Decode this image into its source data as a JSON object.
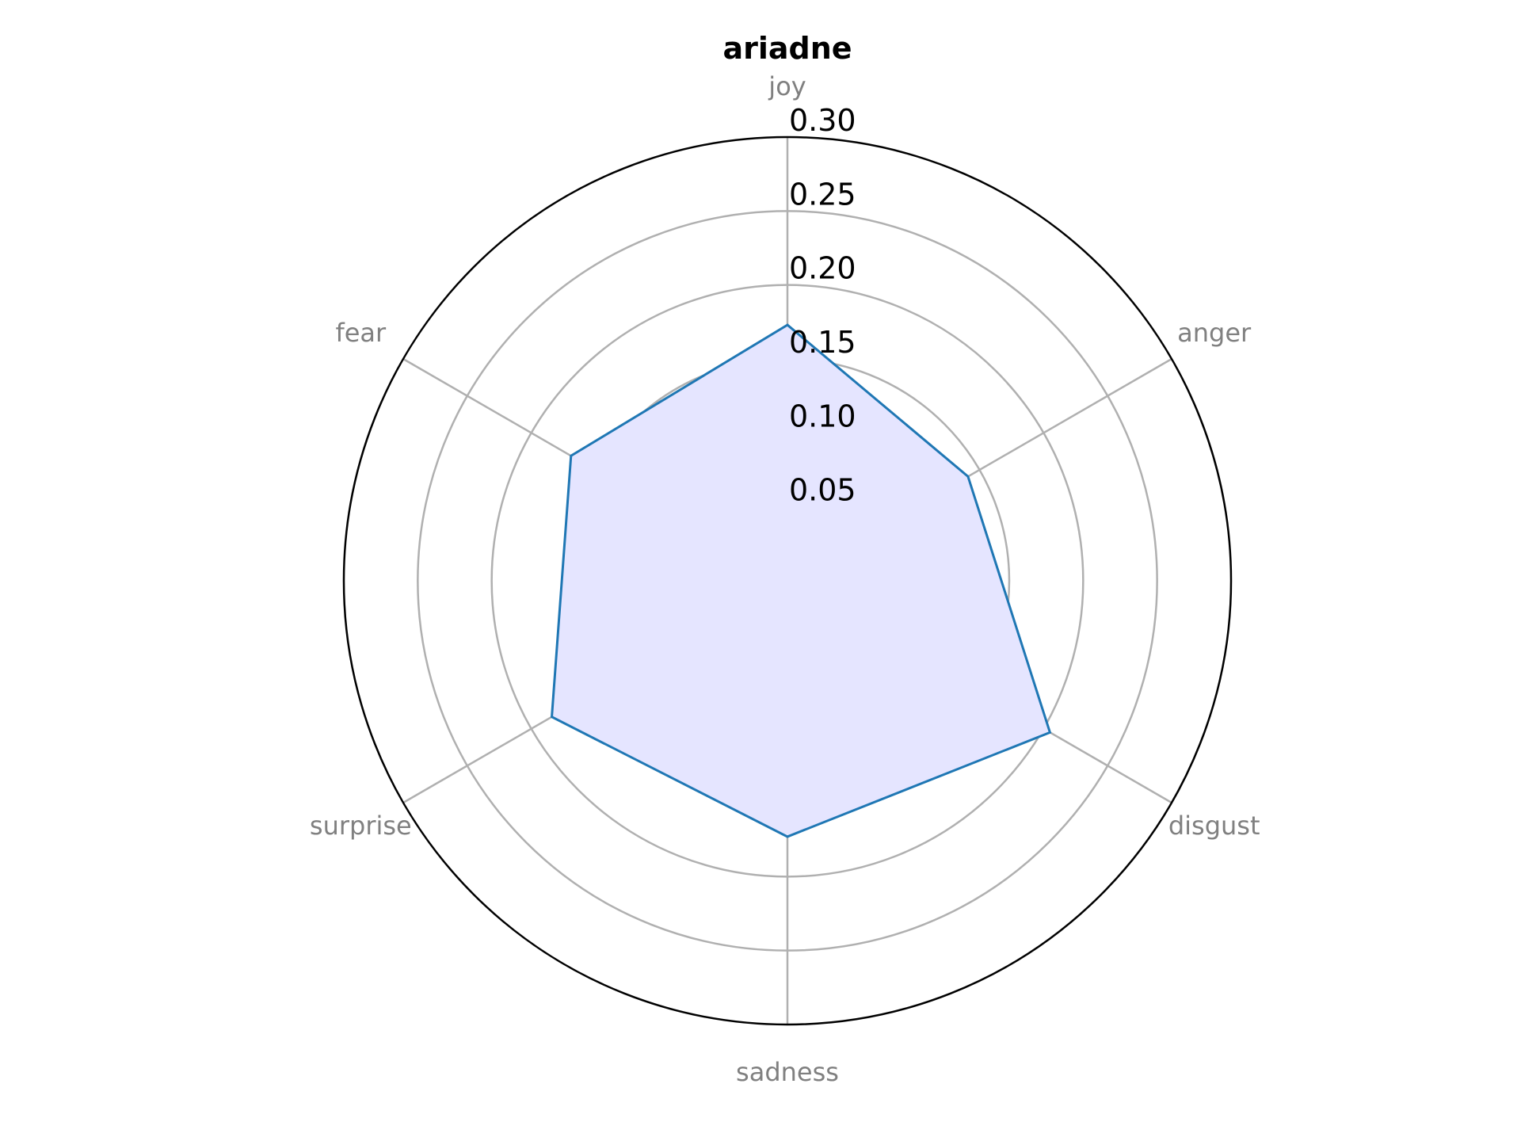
{
  "chart_data": {
    "type": "radar",
    "title": "ariadne",
    "categories": [
      "joy",
      "anger",
      "disgust",
      "sadness",
      "surprise",
      "fear"
    ],
    "series": [
      {
        "values": [
          0.173,
          0.141,
          0.205,
          0.173,
          0.184,
          0.169
        ],
        "line_color": "#1f77b4",
        "fill_color": "#e5e5ff"
      }
    ],
    "rlim": [
      0,
      0.3
    ],
    "rticks": [
      0.05,
      0.1,
      0.15,
      0.2,
      0.25,
      0.3
    ],
    "rtick_labels": [
      "0.05",
      "0.10",
      "0.15",
      "0.20",
      "0.25",
      "0.30"
    ],
    "grid": true,
    "grid_color": "#b0b0b0",
    "spine_color": "#000000",
    "label_color": "#808080"
  }
}
